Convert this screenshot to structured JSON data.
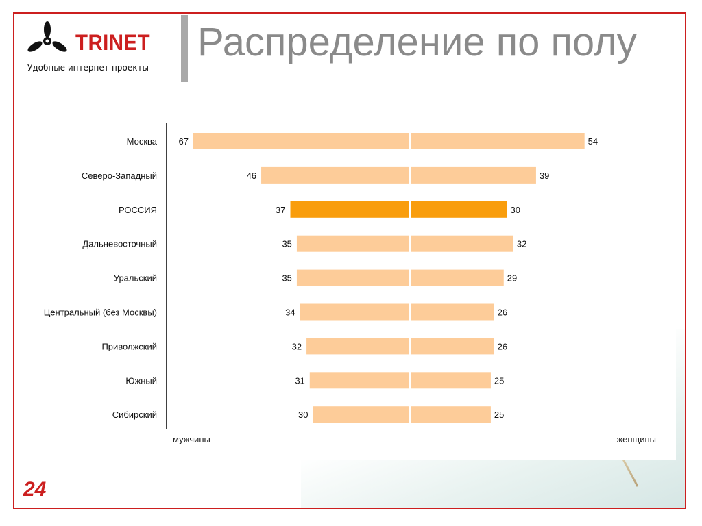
{
  "header": {
    "logo_text": "TRINET",
    "tagline": "Удобные интернет-проекты",
    "title": "Распределение по полу"
  },
  "footer": {
    "page_number": "24"
  },
  "colors": {
    "frame": "#cc1f1f",
    "bar_regular": "#fdcc99",
    "bar_highlight": "#f99d0c",
    "title": "#8a8a8a"
  },
  "chart_data": {
    "type": "bar",
    "orientation": "diverging-horizontal",
    "categories": [
      "Москва",
      "Северо-Западный",
      "РОССИЯ",
      "Дальневосточный",
      "Уральский",
      "Центральный (без Москвы)",
      "Приволжский",
      "Южный",
      "Сибирский"
    ],
    "series": [
      {
        "name": "мужчины",
        "values": [
          67,
          46,
          37,
          35,
          35,
          34,
          32,
          31,
          30
        ]
      },
      {
        "name": "женщины",
        "values": [
          54,
          39,
          30,
          32,
          29,
          26,
          26,
          25,
          25
        ]
      }
    ],
    "highlight_category": "РОССИЯ",
    "xlim": [
      0,
      70
    ],
    "left_label": "мужчины",
    "right_label": "женщины",
    "grid": false
  }
}
